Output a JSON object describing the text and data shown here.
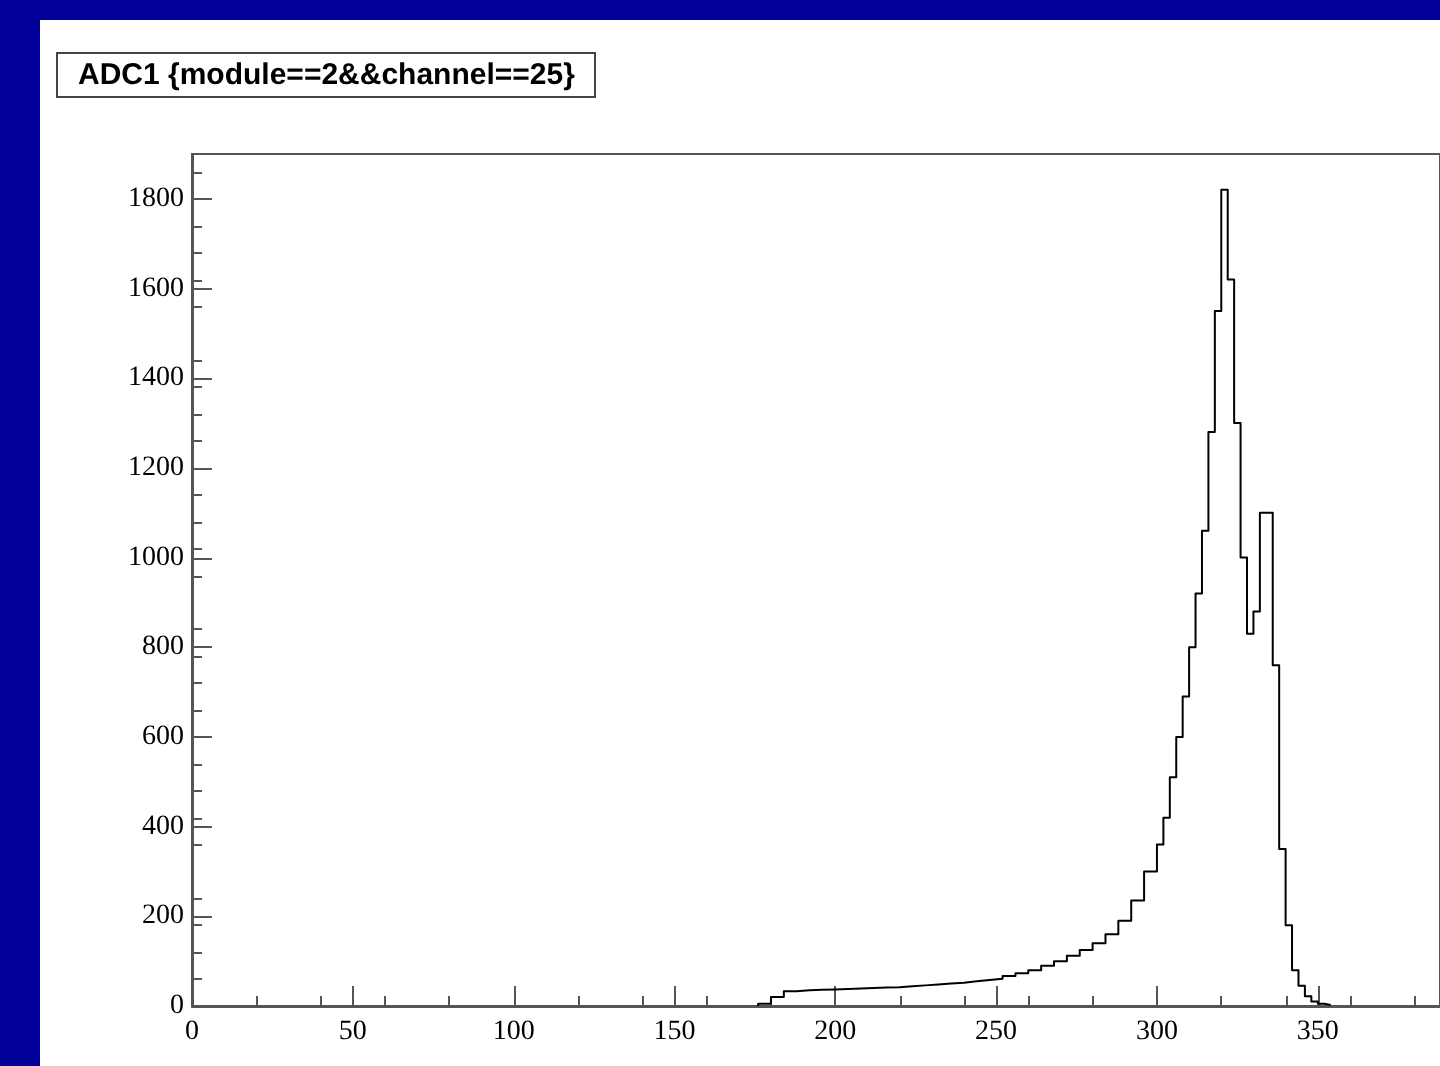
{
  "chart_data": {
    "type": "histogram",
    "title": "ADC1 {module==2&&channel==25}",
    "bins": [
      176,
      180,
      184,
      188,
      192,
      196,
      200,
      204,
      208,
      212,
      216,
      220,
      224,
      228,
      232,
      236,
      240,
      244,
      248,
      252,
      256,
      260,
      264,
      268,
      272,
      276,
      280,
      284,
      288,
      292,
      296,
      300,
      302,
      304,
      306,
      308,
      310,
      312,
      314,
      316,
      318,
      320,
      322,
      324,
      326,
      328,
      330,
      332,
      334,
      336,
      338,
      340,
      342,
      344,
      346,
      348,
      350,
      352,
      354
    ],
    "values": [
      5,
      20,
      33,
      35,
      36,
      37,
      38,
      39,
      40,
      41,
      42,
      44,
      46,
      48,
      50,
      52,
      55,
      58,
      61,
      67,
      73,
      80,
      90,
      100,
      112,
      125,
      140,
      160,
      190,
      235,
      300,
      360,
      420,
      510,
      600,
      690,
      800,
      920,
      1060,
      1280,
      1550,
      1820,
      1620,
      1300,
      1000,
      830,
      880,
      1100,
      1100,
      760,
      350,
      180,
      80,
      45,
      22,
      10,
      5,
      2
    ],
    "color": "#000000",
    "xlim": [
      0,
      388
    ],
    "xticks": [
      0,
      50,
      100,
      150,
      200,
      250,
      300,
      350
    ],
    "ylim": [
      0,
      1900
    ],
    "yticks": [
      0,
      200,
      400,
      600,
      800,
      1000,
      1200,
      1400,
      1600,
      1800
    ],
    "grid": false
  }
}
